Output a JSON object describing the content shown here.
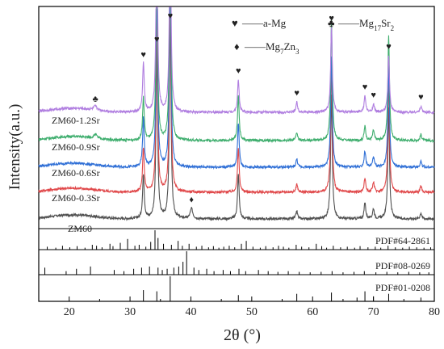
{
  "chart_data": {
    "type": "line",
    "xlabel": "2θ (°)",
    "ylabel": "Intensity(a.u.)",
    "xlim": [
      15,
      80
    ],
    "xticks": [
      20,
      30,
      40,
      50,
      60,
      70,
      80
    ],
    "grid": false,
    "legend": {
      "entries": [
        {
          "symbol": "♥",
          "label": "——a-Mg"
        },
        {
          "symbol": "♣",
          "label": "——Mg17Sr2",
          "sub": [
            "17",
            "2"
          ]
        },
        {
          "symbol": "♦",
          "label": "——Mg7Zn3",
          "sub": [
            "7",
            "3"
          ]
        }
      ]
    },
    "series": [
      {
        "name": "ZM60",
        "color": "#505050"
      },
      {
        "name": "ZM60-0.3Sr",
        "color": "#e0484a"
      },
      {
        "name": "ZM60-0.6Sr",
        "color": "#2f6fd6"
      },
      {
        "name": "ZM60-0.9Sr",
        "color": "#3fae6e"
      },
      {
        "name": "ZM60-1.2Sr",
        "color": "#b07ee0"
      }
    ],
    "peaks_mg": [
      {
        "x": 32.2,
        "h": [
          0.22,
          0.22,
          0.24,
          0.21,
          0.24
        ]
      },
      {
        "x": 34.4,
        "h": [
          0.85,
          0.85,
          0.9,
          0.88,
          0.95
        ]
      },
      {
        "x": 36.6,
        "h": [
          1.0,
          1.0,
          1.0,
          1.0,
          0.98
        ]
      },
      {
        "x": 47.8,
        "h": [
          0.22,
          0.22,
          0.22,
          0.22,
          0.16
        ]
      },
      {
        "x": 57.4,
        "h": [
          0.04,
          0.04,
          0.04,
          0.04,
          0.05
        ]
      },
      {
        "x": 63.1,
        "h": [
          0.62,
          0.62,
          0.55,
          0.6,
          0.42
        ]
      },
      {
        "x": 68.6,
        "h": [
          0.08,
          0.07,
          0.08,
          0.07,
          0.08
        ]
      },
      {
        "x": 70.0,
        "h": [
          0.05,
          0.05,
          0.05,
          0.05,
          0.04
        ]
      },
      {
        "x": 72.5,
        "h": [
          0.55,
          0.55,
          0.5,
          0.52,
          0.28
        ]
      },
      {
        "x": 77.8,
        "h": [
          0.03,
          0.03,
          0.03,
          0.03,
          0.03
        ]
      }
    ],
    "peak_mgzn": {
      "x": 40.1,
      "h": 0.05
    },
    "peak_mgsr": {
      "x": 24.3,
      "h": 0.02
    },
    "markers": [
      {
        "symbol": "♥",
        "x": 32.2,
        "series": 4
      },
      {
        "symbol": "♥",
        "x": 34.4,
        "series": 4,
        "top": true
      },
      {
        "symbol": "♥",
        "x": 36.6,
        "series": 4,
        "top": true
      },
      {
        "symbol": "♥",
        "x": 47.8,
        "series": 4
      },
      {
        "symbol": "♥",
        "x": 57.4,
        "series": 4
      },
      {
        "symbol": "♥",
        "x": 63.1,
        "series": 4
      },
      {
        "symbol": "♥",
        "x": 68.6,
        "series": 4
      },
      {
        "symbol": "♥",
        "x": 70.0,
        "series": 4
      },
      {
        "symbol": "♥",
        "x": 72.5,
        "series": 4
      },
      {
        "symbol": "♥",
        "x": 77.8,
        "series": 4
      },
      {
        "symbol": "♣",
        "x": 24.3,
        "series": 4
      },
      {
        "symbol": "♦",
        "x": 40.1,
        "series": 0
      }
    ],
    "reference_patterns": [
      {
        "label": "PDF#64-2861",
        "lines": [
          16.4,
          17.8,
          18.9,
          20.1,
          21.3,
          22.6,
          23.8,
          24.5,
          25.4,
          26.7,
          27.2,
          28.4,
          29.6,
          30.8,
          31.5,
          32.6,
          33.4,
          34.1,
          34.6,
          35.5,
          36.8,
          37.9,
          38.6,
          39.7,
          40.9,
          41.8,
          42.9,
          43.7,
          44.6,
          45.4,
          46.3,
          47.2,
          48.3,
          49.1,
          50.2,
          51.4,
          52.3,
          53.5,
          54.4,
          55.2,
          56.1,
          57.3,
          58.2,
          59.4,
          60.6,
          61.5,
          62.3,
          63.4,
          64.6,
          65.7,
          66.9,
          67.8,
          69.1,
          70.3,
          71.2,
          72.4,
          73.6,
          74.8,
          75.9,
          77.1,
          78.3,
          79.4
        ],
        "heights": [
          0.15,
          0.1,
          0.2,
          0.12,
          0.18,
          0.1,
          0.25,
          0.2,
          0.12,
          0.3,
          0.18,
          0.35,
          0.55,
          0.2,
          0.25,
          0.15,
          0.4,
          1.0,
          0.6,
          0.3,
          0.25,
          0.45,
          0.2,
          0.3,
          0.15,
          0.2,
          0.12,
          0.18,
          0.1,
          0.15,
          0.2,
          0.12,
          0.3,
          0.45,
          0.15,
          0.1,
          0.18,
          0.12,
          0.2,
          0.15,
          0.1,
          0.25,
          0.15,
          0.12,
          0.3,
          0.18,
          0.1,
          0.2,
          0.12,
          0.15,
          0.1,
          0.18,
          0.12,
          0.15,
          0.1,
          0.2,
          0.12,
          0.1,
          0.15,
          0.12,
          0.1,
          0.12
        ]
      },
      {
        "label": "PDF#08-0269",
        "lines": [
          16.0,
          19.5,
          21.2,
          23.5,
          27.4,
          29.0,
          30.6,
          31.9,
          33.2,
          34.6,
          35.3,
          36.1,
          37.2,
          38.0,
          38.7,
          39.3,
          40.5,
          41.3,
          42.6,
          43.8,
          45.3,
          46.5,
          47.9,
          49.0,
          51.1,
          52.7,
          54.3,
          56.0,
          57.8,
          59.6,
          61.4,
          63.2,
          65.0,
          66.8,
          68.5,
          70.4,
          72.2,
          74.0,
          75.8,
          77.6,
          79.1
        ],
        "heights": [
          0.3,
          0.15,
          0.25,
          0.35,
          0.2,
          0.15,
          0.25,
          0.3,
          0.35,
          0.3,
          0.2,
          0.25,
          0.3,
          0.35,
          0.55,
          1.0,
          0.3,
          0.2,
          0.25,
          0.15,
          0.2,
          0.15,
          0.25,
          0.15,
          0.2,
          0.15,
          0.12,
          0.15,
          0.12,
          0.1,
          0.12,
          0.15,
          0.1,
          0.12,
          0.15,
          0.1,
          0.12,
          0.1,
          0.12,
          0.1,
          0.1
        ]
      },
      {
        "label": "PDF#01-0208",
        "lines": [
          32.2,
          34.4,
          36.6,
          47.8,
          57.4,
          63.1,
          67.3,
          68.6,
          70.0,
          72.5,
          77.8
        ],
        "heights": [
          0.45,
          0.4,
          1.0,
          0.25,
          0.3,
          0.35,
          0.15,
          0.4,
          0.2,
          0.3,
          0.15
        ]
      }
    ]
  }
}
